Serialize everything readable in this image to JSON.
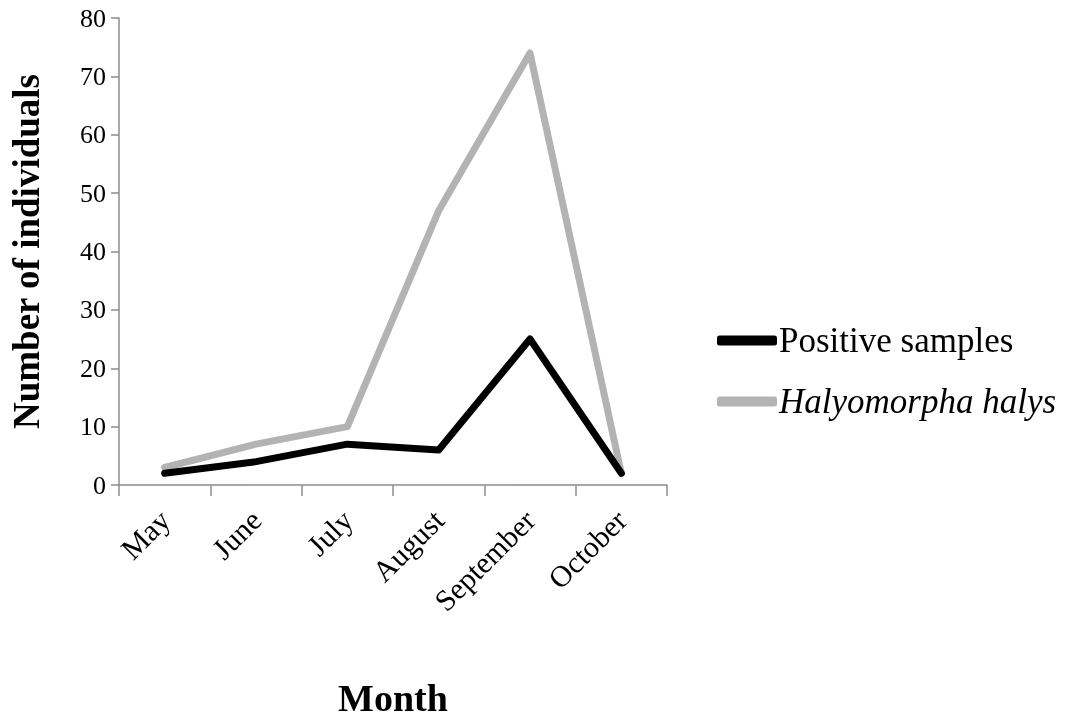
{
  "chart_data": {
    "type": "line",
    "xlabel": "Month",
    "ylabel": "Number of individuals",
    "categories": [
      "May",
      "June",
      "July",
      "August",
      "September",
      "October"
    ],
    "series": [
      {
        "name": "Positive samples",
        "color": "#000000",
        "values": [
          2,
          4,
          7,
          6,
          25,
          2
        ]
      },
      {
        "name": "Halyomorpha halys",
        "color": "#b3b3b3",
        "values": [
          3,
          7,
          10,
          47,
          74,
          2
        ]
      }
    ],
    "ylim": [
      0,
      80
    ],
    "yticks": [
      0,
      10,
      20,
      30,
      40,
      50,
      60,
      70,
      80
    ],
    "grid": false,
    "legend": "right",
    "marker": "none",
    "line_style": "solid"
  }
}
